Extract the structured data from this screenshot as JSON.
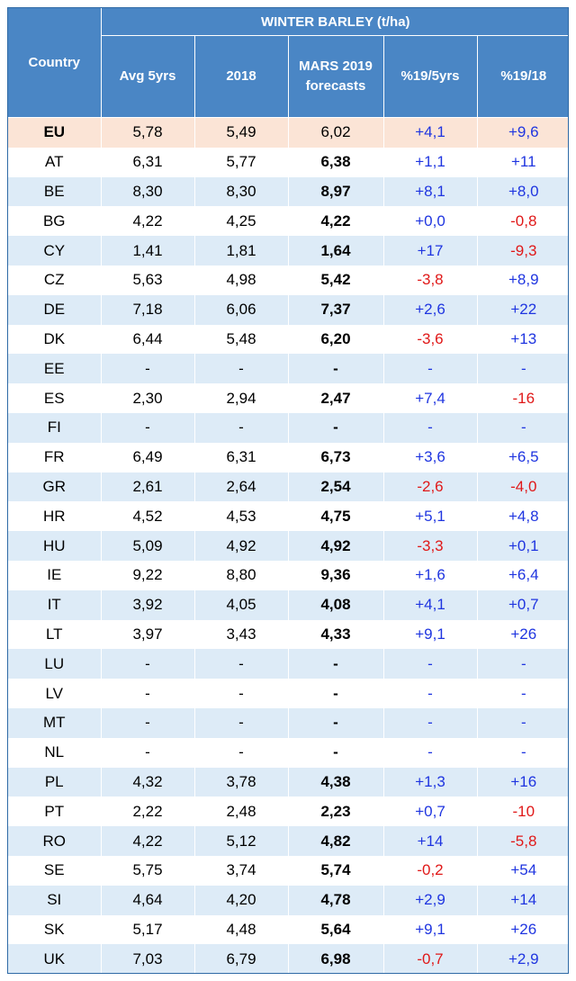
{
  "header": {
    "group_title": "WINTER BARLEY (t/ha)",
    "country_label": "Country",
    "col_avg": "Avg 5yrs",
    "col_2018": "2018",
    "col_forecast_line1": "MARS 2019",
    "col_forecast_line2": "forecasts",
    "col_pct_5yrs": "%19/5yrs",
    "col_pct_18": "%19/18"
  },
  "rows": [
    {
      "country": "EU",
      "avg": "5,78",
      "y2018": "5,49",
      "forecast": "6,02",
      "pct5": "+4,1",
      "pct18": "+9,6",
      "pct5_sign": "pos",
      "pct18_sign": "pos"
    },
    {
      "country": "AT",
      "avg": "6,31",
      "y2018": "5,77",
      "forecast": "6,38",
      "pct5": "+1,1",
      "pct18": "+11",
      "pct5_sign": "pos",
      "pct18_sign": "pos"
    },
    {
      "country": "BE",
      "avg": "8,30",
      "y2018": "8,30",
      "forecast": "8,97",
      "pct5": "+8,1",
      "pct18": "+8,0",
      "pct5_sign": "pos",
      "pct18_sign": "pos"
    },
    {
      "country": "BG",
      "avg": "4,22",
      "y2018": "4,25",
      "forecast": "4,22",
      "pct5": "+0,0",
      "pct18": "-0,8",
      "pct5_sign": "pos",
      "pct18_sign": "neg"
    },
    {
      "country": "CY",
      "avg": "1,41",
      "y2018": "1,81",
      "forecast": "1,64",
      "pct5": "+17",
      "pct18": "-9,3",
      "pct5_sign": "pos",
      "pct18_sign": "neg"
    },
    {
      "country": "CZ",
      "avg": "5,63",
      "y2018": "4,98",
      "forecast": "5,42",
      "pct5": "-3,8",
      "pct18": "+8,9",
      "pct5_sign": "neg",
      "pct18_sign": "pos"
    },
    {
      "country": "DE",
      "avg": "7,18",
      "y2018": "6,06",
      "forecast": "7,37",
      "pct5": "+2,6",
      "pct18": "+22",
      "pct5_sign": "pos",
      "pct18_sign": "pos"
    },
    {
      "country": "DK",
      "avg": "6,44",
      "y2018": "5,48",
      "forecast": "6,20",
      "pct5": "-3,6",
      "pct18": "+13",
      "pct5_sign": "neg",
      "pct18_sign": "pos"
    },
    {
      "country": "EE",
      "avg": "-",
      "y2018": "-",
      "forecast": "-",
      "pct5": "-",
      "pct18": "-",
      "pct5_sign": "pos",
      "pct18_sign": "pos"
    },
    {
      "country": "ES",
      "avg": "2,30",
      "y2018": "2,94",
      "forecast": "2,47",
      "pct5": "+7,4",
      "pct18": "-16",
      "pct5_sign": "pos",
      "pct18_sign": "neg"
    },
    {
      "country": "FI",
      "avg": "-",
      "y2018": "-",
      "forecast": "-",
      "pct5": "-",
      "pct18": "-",
      "pct5_sign": "pos",
      "pct18_sign": "pos"
    },
    {
      "country": "FR",
      "avg": "6,49",
      "y2018": "6,31",
      "forecast": "6,73",
      "pct5": "+3,6",
      "pct18": "+6,5",
      "pct5_sign": "pos",
      "pct18_sign": "pos"
    },
    {
      "country": "GR",
      "avg": "2,61",
      "y2018": "2,64",
      "forecast": "2,54",
      "pct5": "-2,6",
      "pct18": "-4,0",
      "pct5_sign": "neg",
      "pct18_sign": "neg"
    },
    {
      "country": "HR",
      "avg": "4,52",
      "y2018": "4,53",
      "forecast": "4,75",
      "pct5": "+5,1",
      "pct18": "+4,8",
      "pct5_sign": "pos",
      "pct18_sign": "pos"
    },
    {
      "country": "HU",
      "avg": "5,09",
      "y2018": "4,92",
      "forecast": "4,92",
      "pct5": "-3,3",
      "pct18": "+0,1",
      "pct5_sign": "neg",
      "pct18_sign": "pos"
    },
    {
      "country": "IE",
      "avg": "9,22",
      "y2018": "8,80",
      "forecast": "9,36",
      "pct5": "+1,6",
      "pct18": "+6,4",
      "pct5_sign": "pos",
      "pct18_sign": "pos"
    },
    {
      "country": "IT",
      "avg": "3,92",
      "y2018": "4,05",
      "forecast": "4,08",
      "pct5": "+4,1",
      "pct18": "+0,7",
      "pct5_sign": "pos",
      "pct18_sign": "pos"
    },
    {
      "country": "LT",
      "avg": "3,97",
      "y2018": "3,43",
      "forecast": "4,33",
      "pct5": "+9,1",
      "pct18": "+26",
      "pct5_sign": "pos",
      "pct18_sign": "pos"
    },
    {
      "country": "LU",
      "avg": "-",
      "y2018": "-",
      "forecast": "-",
      "pct5": "-",
      "pct18": "-",
      "pct5_sign": "pos",
      "pct18_sign": "pos"
    },
    {
      "country": "LV",
      "avg": "-",
      "y2018": "-",
      "forecast": "-",
      "pct5": "-",
      "pct18": "-",
      "pct5_sign": "pos",
      "pct18_sign": "pos"
    },
    {
      "country": "MT",
      "avg": "-",
      "y2018": "-",
      "forecast": "-",
      "pct5": "-",
      "pct18": "-",
      "pct5_sign": "pos",
      "pct18_sign": "pos"
    },
    {
      "country": "NL",
      "avg": "-",
      "y2018": "-",
      "forecast": "-",
      "pct5": "-",
      "pct18": "-",
      "pct5_sign": "pos",
      "pct18_sign": "pos"
    },
    {
      "country": "PL",
      "avg": "4,32",
      "y2018": "3,78",
      "forecast": "4,38",
      "pct5": "+1,3",
      "pct18": "+16",
      "pct5_sign": "pos",
      "pct18_sign": "pos"
    },
    {
      "country": "PT",
      "avg": "2,22",
      "y2018": "2,48",
      "forecast": "2,23",
      "pct5": "+0,7",
      "pct18": "-10",
      "pct5_sign": "pos",
      "pct18_sign": "neg"
    },
    {
      "country": "RO",
      "avg": "4,22",
      "y2018": "5,12",
      "forecast": "4,82",
      "pct5": "+14",
      "pct18": "-5,8",
      "pct5_sign": "pos",
      "pct18_sign": "neg"
    },
    {
      "country": "SE",
      "avg": "5,75",
      "y2018": "3,74",
      "forecast": "5,74",
      "pct5": "-0,2",
      "pct18": "+54",
      "pct5_sign": "neg",
      "pct18_sign": "pos"
    },
    {
      "country": "SI",
      "avg": "4,64",
      "y2018": "4,20",
      "forecast": "4,78",
      "pct5": "+2,9",
      "pct18": "+14",
      "pct5_sign": "pos",
      "pct18_sign": "pos"
    },
    {
      "country": "SK",
      "avg": "5,17",
      "y2018": "4,48",
      "forecast": "5,64",
      "pct5": "+9,1",
      "pct18": "+26",
      "pct5_sign": "pos",
      "pct18_sign": "pos"
    },
    {
      "country": "UK",
      "avg": "7,03",
      "y2018": "6,79",
      "forecast": "6,98",
      "pct5": "-0,7",
      "pct18": "+2,9",
      "pct5_sign": "neg",
      "pct18_sign": "pos"
    }
  ]
}
